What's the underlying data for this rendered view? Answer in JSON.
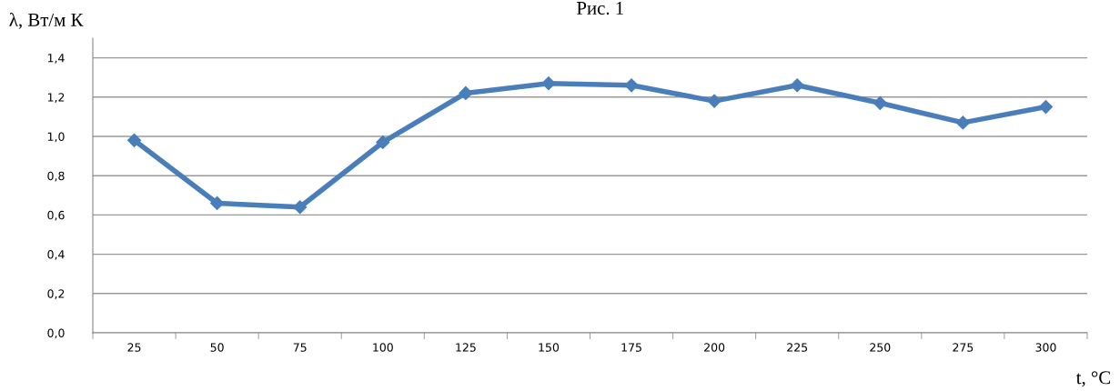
{
  "chart_data": {
    "type": "line",
    "title": "Рис. 1",
    "ylabel": "λ, Вт/м К",
    "xlabel": "t, °C",
    "categories": [
      "25",
      "50",
      "75",
      "100",
      "125",
      "150",
      "175",
      "200",
      "225",
      "250",
      "275",
      "300"
    ],
    "series": [
      {
        "color": "#4a7ebb",
        "values": [
          0.98,
          0.66,
          0.64,
          0.97,
          1.22,
          1.27,
          1.26,
          1.18,
          1.26,
          1.17,
          1.07,
          1.15
        ]
      }
    ],
    "ylim": [
      0,
      1.5
    ],
    "yticks": [
      {
        "value": 0,
        "label": "0,0"
      },
      {
        "value": 0.2,
        "label": "0,2"
      },
      {
        "value": 0.4,
        "label": "0,4"
      },
      {
        "value": 0.6,
        "label": "0,6"
      },
      {
        "value": 0.8,
        "label": "0,8"
      },
      {
        "value": 1.0,
        "label": "1,0"
      },
      {
        "value": 1.2,
        "label": "1,2"
      },
      {
        "value": 1.4,
        "label": "1,4"
      }
    ],
    "grid": "y",
    "marker": "diamond",
    "line_style": "solid"
  }
}
